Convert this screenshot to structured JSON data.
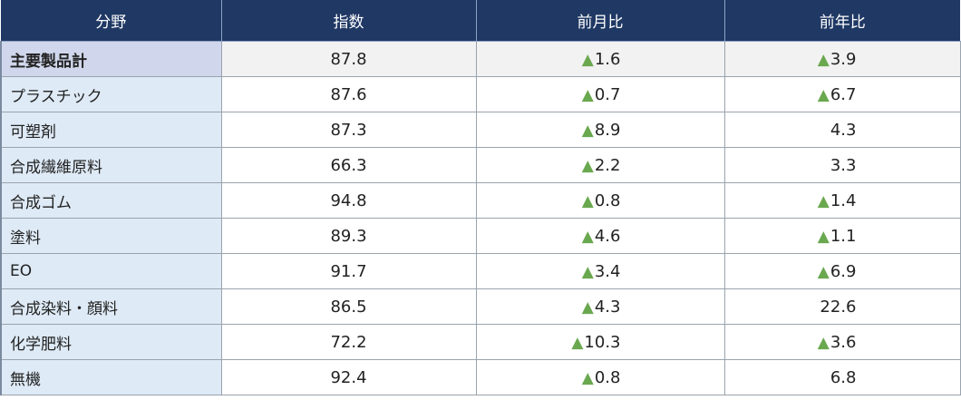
{
  "colors": {
    "header_bg": "#1f3864",
    "label_bg": "#deeaf6",
    "total_label_bg": "#d0d7ec",
    "triangle": "#6aa84f"
  },
  "header": {
    "col0": "分野",
    "col1": "指数",
    "col2": "前月比",
    "col3": "前年比"
  },
  "triangle_symbol": "▲",
  "rows": [
    {
      "name": "主要製品計",
      "index": "87.8",
      "mom": "1.6",
      "mom_up": true,
      "yoy": "3.9",
      "yoy_up": true
    },
    {
      "name": "プラスチック",
      "index": "87.6",
      "mom": "0.7",
      "mom_up": true,
      "yoy": "6.7",
      "yoy_up": true
    },
    {
      "name": "可塑剤",
      "index": "87.3",
      "mom": "8.9",
      "mom_up": true,
      "yoy": "4.3",
      "yoy_up": false
    },
    {
      "name": "合成繊維原料",
      "index": "66.3",
      "mom": "2.2",
      "mom_up": true,
      "yoy": "3.3",
      "yoy_up": false
    },
    {
      "name": "合成ゴム",
      "index": "94.8",
      "mom": "0.8",
      "mom_up": true,
      "yoy": "1.4",
      "yoy_up": true
    },
    {
      "name": "塗料",
      "index": "89.3",
      "mom": "4.6",
      "mom_up": true,
      "yoy": "1.1",
      "yoy_up": true
    },
    {
      "name": "EO",
      "index": "91.7",
      "mom": "3.4",
      "mom_up": true,
      "yoy": "6.9",
      "yoy_up": true
    },
    {
      "name": "合成染料・顔料",
      "index": "86.5",
      "mom": "4.3",
      "mom_up": true,
      "yoy": "22.6",
      "yoy_up": false
    },
    {
      "name": "化学肥料",
      "index": "72.2",
      "mom": "10.3",
      "mom_up": true,
      "yoy": "3.6",
      "yoy_up": true
    },
    {
      "name": "無機",
      "index": "92.4",
      "mom": "0.8",
      "mom_up": true,
      "yoy": "6.8",
      "yoy_up": false
    }
  ]
}
